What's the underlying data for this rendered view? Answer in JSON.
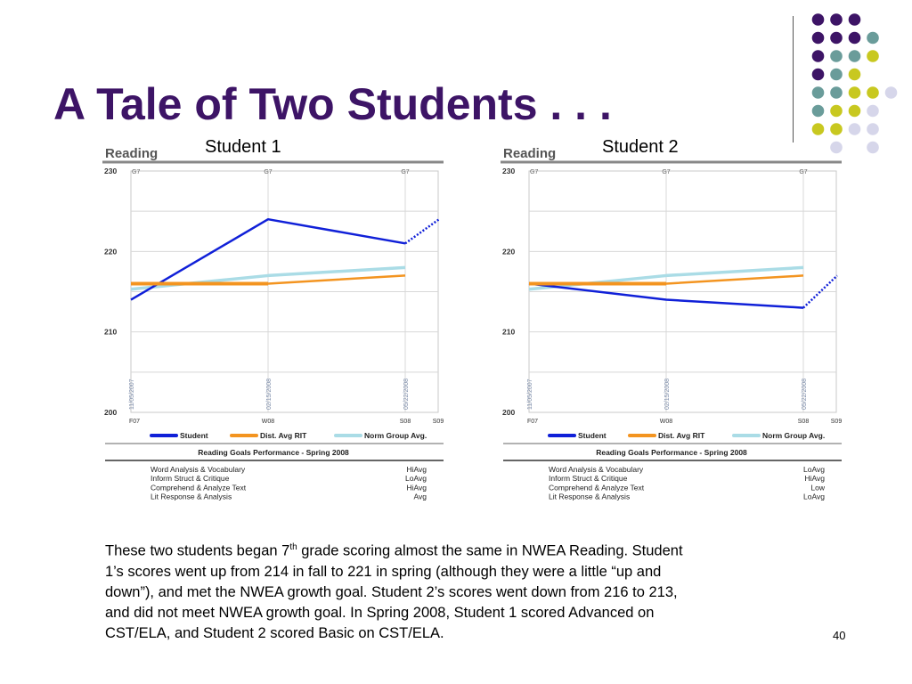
{
  "slide": {
    "title": "A Tale of Two Students . . .",
    "student1_label": "Student 1",
    "student2_label": "Student 2",
    "desc_line1_pre": "These two students began 7",
    "desc_line1_sup": "th",
    "desc_line1_post": " grade scoring almost the same in NWEA Reading.  Student",
    "desc_line2": "1’s scores went up from 214 in fall to 221 in spring (although they were a little “up and",
    "desc_line3": "down”), and met the NWEA growth goal. Student 2’s scores went down from 216 to 213,",
    "desc_line4": "and did not meet NWEA growth goal.  In Spring 2008, Student 1 scored Advanced on",
    "desc_line5": "CST/ELA, and Student 2 scored Basic on CST/ELA.",
    "page_number": "40"
  },
  "colors": {
    "title": "#3d1466",
    "student": "#1020d8",
    "dist_avg": "#f39420",
    "norm_group": "#aadce6",
    "dot_purple": "#3d1466",
    "dot_teal": "#6a9c9a",
    "dot_yellow": "#c8c820",
    "dot_lavender": "#d6d6ea"
  },
  "chart_data": [
    {
      "type": "line",
      "title": "Reading",
      "ylim": [
        200,
        230
      ],
      "y_ticks": [
        "230",
        "220",
        "210",
        "200"
      ],
      "x_categories": [
        "F07",
        "W08",
        "S08",
        "S09"
      ],
      "grade_labels": [
        "G7",
        "G7",
        "G7"
      ],
      "test_dates": [
        "11/05/2007",
        "02/15/2008",
        "05/22/2008"
      ],
      "series": [
        {
          "name": "Student",
          "values": [
            214,
            224,
            221
          ],
          "projection": [
            221,
            224
          ]
        },
        {
          "name": "Dist. Avg RIT",
          "values": [
            216,
            216,
            217
          ]
        },
        {
          "name": "Norm Group Avg.",
          "values": [
            215.3,
            217,
            218
          ]
        }
      ],
      "goals_title": "Reading Goals Performance - Spring 2008",
      "goals": [
        {
          "goal": "Word Analysis & Vocabulary",
          "level": "HiAvg"
        },
        {
          "goal": "Inform Struct & Critique",
          "level": "LoAvg"
        },
        {
          "goal": "Comprehend & Analyze Text",
          "level": "HiAvg"
        },
        {
          "goal": "Lit Response & Analysis",
          "level": "Avg"
        }
      ]
    },
    {
      "type": "line",
      "title": "Reading",
      "ylim": [
        200,
        230
      ],
      "y_ticks": [
        "230",
        "220",
        "210",
        "200"
      ],
      "x_categories": [
        "F07",
        "W08",
        "S08",
        "S09"
      ],
      "grade_labels": [
        "G7",
        "G7",
        "G7"
      ],
      "test_dates": [
        "11/05/2007",
        "02/15/2008",
        "05/22/2008"
      ],
      "series": [
        {
          "name": "Student",
          "values": [
            216,
            214,
            213
          ],
          "projection": [
            213,
            217
          ]
        },
        {
          "name": "Dist. Avg RIT",
          "values": [
            216,
            216,
            217
          ]
        },
        {
          "name": "Norm Group Avg.",
          "values": [
            215.3,
            217,
            218
          ]
        }
      ],
      "goals_title": "Reading Goals Performance - Spring 2008",
      "goals": [
        {
          "goal": "Word Analysis & Vocabulary",
          "level": "LoAvg"
        },
        {
          "goal": "Inform Struct & Critique",
          "level": "HiAvg"
        },
        {
          "goal": "Comprehend & Analyze Text",
          "level": "Low"
        },
        {
          "goal": "Lit Response & Analysis",
          "level": "LoAvg"
        }
      ]
    }
  ]
}
